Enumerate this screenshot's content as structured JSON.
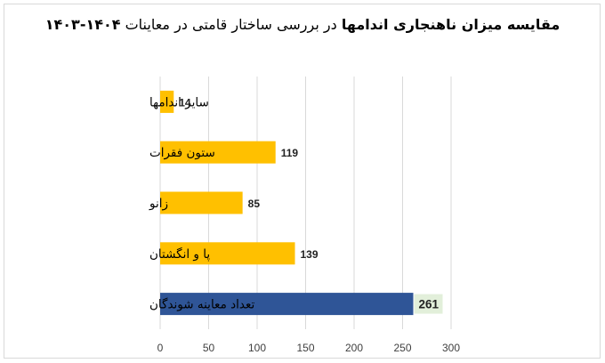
{
  "chart_data": {
    "type": "bar",
    "orientation": "horizontal",
    "title_bold": "مقایسه میزان ناهنجاری اندامها",
    "title_regular": "در بررسی ساختار قامتی در معاینات",
    "title_years": "۱۴۰۴-۱۴۰۳",
    "categories": [
      "سایر اندامها",
      "ستون فقرات",
      "زانو",
      "پا و انگشتان",
      "تعداد معاینه شوندگان"
    ],
    "values": [
      14,
      119,
      85,
      139,
      261
    ],
    "bar_colors": [
      "#ffc000",
      "#ffc000",
      "#ffc000",
      "#ffc000",
      "#2f5597"
    ],
    "xlim": [
      0,
      300
    ],
    "xticks": [
      0,
      50,
      100,
      150,
      200,
      250,
      300
    ],
    "grid": "vertical",
    "highlight_label_bg": "#e2efda"
  }
}
